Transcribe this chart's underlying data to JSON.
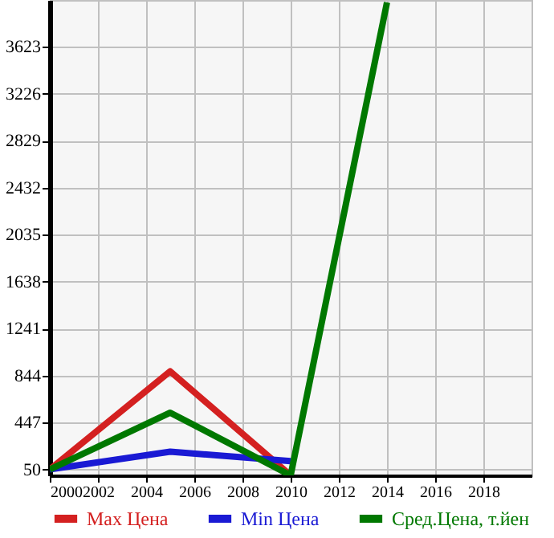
{
  "chart_data": {
    "type": "line",
    "x": [
      2000,
      2005,
      2010,
      2014
    ],
    "series": [
      {
        "name": "Max Цена",
        "color": "#d42020",
        "values": [
          50,
          880,
          0,
          null
        ]
      },
      {
        "name": "Min Цена",
        "color": "#1a1ad4",
        "values": [
          50,
          200,
          120,
          null
        ]
      },
      {
        "name": "Сред.Цена, т.йен",
        "color": "#007800",
        "values": [
          50,
          530,
          0,
          4000
        ]
      }
    ],
    "xlim": [
      2000,
      2020
    ],
    "xticks": [
      2000,
      2002,
      2004,
      2006,
      2008,
      2010,
      2012,
      2014,
      2016,
      2018
    ],
    "ylim": [
      0,
      4020
    ],
    "yticks": [
      50,
      447,
      844,
      1241,
      1638,
      2035,
      2432,
      2829,
      3226,
      3623
    ],
    "grid": true,
    "legend": "bottom",
    "marker": "none",
    "line_style": "solid"
  }
}
